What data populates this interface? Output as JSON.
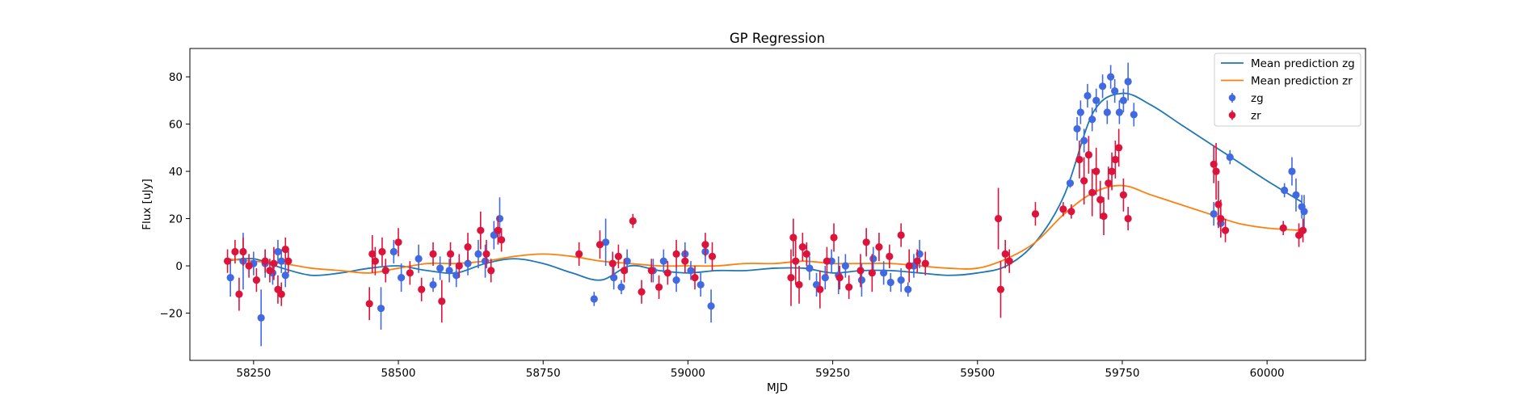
{
  "chart_data": {
    "type": "scatter",
    "title": "GP Regression",
    "xlabel": "MJD",
    "ylabel": "Flux [uJy]",
    "xlim": [
      58140,
      60170
    ],
    "ylim": [
      -40,
      92
    ],
    "xticks": [
      58250,
      58500,
      58750,
      59000,
      59250,
      59500,
      59750,
      60000
    ],
    "yticks": [
      -20,
      0,
      20,
      40,
      60,
      80
    ],
    "grid": false,
    "legend_position": "top-right",
    "legend": [
      {
        "label": "Mean prediction zg",
        "kind": "line",
        "color": "#1f77b4"
      },
      {
        "label": "Mean prediction zr",
        "kind": "line",
        "color": "#ff7f0e"
      },
      {
        "label": "zg",
        "kind": "errorbar",
        "color": "#4169e1"
      },
      {
        "label": "zr",
        "kind": "errorbar",
        "color": "#dc143c"
      }
    ],
    "series": [
      {
        "name": "Mean prediction zg",
        "kind": "line",
        "color": "#1f77b4",
        "x": [
          58200,
          58250,
          58300,
          58350,
          58400,
          58450,
          58500,
          58550,
          58600,
          58650,
          58700,
          58750,
          58800,
          58850,
          58900,
          58950,
          59000,
          59050,
          59100,
          59150,
          59200,
          59250,
          59300,
          59350,
          59400,
          59450,
          59500,
          59550,
          59600,
          59650,
          59700,
          59750,
          59800,
          59850,
          59900,
          59950,
          60000,
          60060
        ],
        "y": [
          2,
          3,
          -1,
          -4,
          -3,
          -1,
          0,
          -2,
          -3,
          1,
          3,
          1,
          -3,
          -6,
          0,
          -2,
          -3,
          -2,
          -2,
          -1,
          -1,
          -3,
          -2,
          -2,
          -3,
          -4,
          -3,
          0,
          10,
          30,
          65,
          73,
          68,
          60,
          52,
          44,
          36,
          27
        ]
      },
      {
        "name": "Mean prediction zr",
        "kind": "line",
        "color": "#ff7f0e",
        "x": [
          58200,
          58250,
          58300,
          58350,
          58400,
          58450,
          58500,
          58550,
          58600,
          58650,
          58700,
          58750,
          58800,
          58850,
          58900,
          58950,
          59000,
          59050,
          59100,
          59150,
          59200,
          59250,
          59300,
          59350,
          59400,
          59450,
          59500,
          59550,
          59600,
          59650,
          59700,
          59750,
          59800,
          59850,
          59900,
          59950,
          60000,
          60060
        ],
        "y": [
          3,
          2,
          1,
          -1,
          -2,
          -3,
          -1,
          1,
          1,
          2,
          4,
          5,
          4,
          2,
          1,
          0,
          0,
          0,
          1,
          1,
          2,
          1,
          1,
          1,
          0,
          -1,
          -1,
          3,
          10,
          22,
          31,
          34,
          30,
          26,
          22,
          18,
          16,
          15
        ]
      },
      {
        "name": "zg",
        "kind": "errorbar",
        "color": "#4169e1",
        "x": [
          58210,
          58232,
          58250,
          58263,
          58270,
          58283,
          58292,
          58298,
          58305,
          58470,
          58492,
          58505,
          58535,
          58560,
          58572,
          58588,
          58600,
          58620,
          58638,
          58650,
          58665,
          58675,
          58838,
          58858,
          58872,
          58885,
          58895,
          58940,
          58958,
          58980,
          58995,
          59005,
          59022,
          59030,
          59040,
          59210,
          59222,
          59237,
          59248,
          59260,
          59272,
          59300,
          59320,
          59338,
          59350,
          59368,
          59380,
          59390,
          59400,
          59660,
          59672,
          59678,
          59684,
          59690,
          59698,
          59705,
          59716,
          59724,
          59730,
          59737,
          59745,
          59752,
          59760,
          59770,
          59908,
          59920,
          59936,
          60030,
          60043,
          60050,
          60060,
          60064
        ],
        "y": [
          -5,
          2,
          1,
          -22,
          1,
          -3,
          6,
          2,
          -4,
          -18,
          6,
          -5,
          3,
          -8,
          -1,
          -2,
          -4,
          1,
          5,
          2,
          13,
          20,
          -14,
          10,
          -5,
          -9,
          2,
          -2,
          2,
          -6,
          5,
          -2,
          -8,
          6,
          -17,
          -1,
          -8,
          -5,
          2,
          -4,
          0,
          -6,
          3,
          -3,
          -7,
          -6,
          -10,
          0,
          5,
          35,
          58,
          65,
          53,
          72,
          62,
          70,
          76,
          65,
          80,
          74,
          65,
          70,
          78,
          64,
          22,
          18,
          46,
          32,
          40,
          30,
          25,
          23
        ],
        "yerr": [
          8,
          12,
          5,
          12,
          6,
          5,
          5,
          5,
          5,
          9,
          5,
          6,
          6,
          3,
          5,
          5,
          5,
          5,
          6,
          7,
          6,
          9,
          3,
          10,
          5,
          3,
          5,
          5,
          5,
          5,
          5,
          4,
          5,
          5,
          7,
          5,
          5,
          5,
          5,
          8,
          5,
          7,
          5,
          5,
          4,
          5,
          3,
          5,
          6,
          2,
          5,
          5,
          5,
          5,
          5,
          5,
          5,
          5,
          5,
          5,
          5,
          5,
          8,
          5,
          5,
          5,
          3,
          3,
          6,
          7,
          5,
          7
        ]
      },
      {
        "name": "zr",
        "kind": "errorbar",
        "color": "#dc143c",
        "x": [
          58205,
          58218,
          58225,
          58232,
          58242,
          58255,
          58270,
          58278,
          58285,
          58292,
          58298,
          58305,
          58310,
          58450,
          58455,
          58460,
          58472,
          58478,
          58500,
          58520,
          58540,
          58560,
          58575,
          58590,
          58605,
          58620,
          58642,
          58652,
          58660,
          58672,
          58678,
          58812,
          58848,
          58870,
          58880,
          58890,
          58905,
          58920,
          58937,
          58950,
          58965,
          58980,
          58995,
          59012,
          59030,
          59042,
          59178,
          59182,
          59186,
          59192,
          59198,
          59205,
          59228,
          59240,
          59252,
          59262,
          59278,
          59298,
          59308,
          59318,
          59330,
          59348,
          59368,
          59382,
          59396,
          59410,
          59536,
          59540,
          59548,
          59555,
          59600,
          59648,
          59662,
          59676,
          59684,
          59692,
          59698,
          59705,
          59712,
          59718,
          59726,
          59732,
          59738,
          59744,
          59752,
          59760,
          59908,
          59912,
          59916,
          59920,
          59928,
          60028,
          60055,
          60062
        ],
        "y": [
          2,
          6,
          -12,
          6,
          0,
          -6,
          2,
          -2,
          1,
          -10,
          -12,
          7,
          2,
          -16,
          5,
          2,
          6,
          -2,
          10,
          -3,
          -10,
          5,
          -15,
          5,
          0,
          8,
          15,
          5,
          -2,
          15,
          11,
          5,
          9,
          1,
          4,
          -2,
          19,
          -11,
          -2,
          -9,
          -3,
          5,
          2,
          -5,
          9,
          4,
          -5,
          12,
          2,
          -8,
          8,
          5,
          -10,
          2,
          12,
          -5,
          -9,
          -2,
          10,
          -3,
          8,
          4,
          13,
          0,
          2,
          1,
          20,
          -10,
          5,
          2,
          22,
          24,
          23,
          45,
          36,
          47,
          31,
          40,
          28,
          21,
          35,
          40,
          45,
          50,
          30,
          20,
          43,
          40,
          26,
          20,
          15,
          16,
          13,
          15
        ],
        "yerr": [
          5,
          5,
          7,
          6,
          5,
          5,
          5,
          5,
          7,
          6,
          5,
          5,
          5,
          7,
          8,
          6,
          6,
          5,
          6,
          5,
          5,
          5,
          9,
          5,
          5,
          6,
          8,
          6,
          5,
          6,
          5,
          5,
          6,
          5,
          5,
          5,
          3,
          5,
          5,
          5,
          5,
          6,
          5,
          5,
          5,
          6,
          12,
          8,
          10,
          8,
          6,
          5,
          8,
          6,
          6,
          5,
          5,
          7,
          6,
          8,
          6,
          5,
          5,
          7,
          5,
          5,
          13,
          12,
          6,
          5,
          5,
          3,
          3,
          8,
          10,
          8,
          10,
          10,
          8,
          8,
          7,
          8,
          8,
          8,
          7,
          5,
          8,
          12,
          10,
          8,
          5,
          3,
          5,
          5
        ]
      }
    ]
  }
}
